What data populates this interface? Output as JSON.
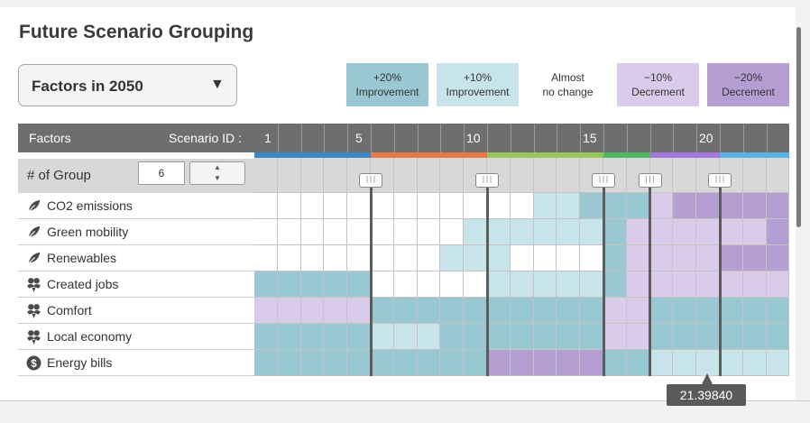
{
  "title": "Future Scenario Grouping",
  "dropdown": {
    "label": "Factors in 2050",
    "arrow": "▼"
  },
  "legend": [
    {
      "line1": "+20%",
      "line2": "Improvement",
      "color": "#99c8d2"
    },
    {
      "line1": "+10%",
      "line2": "Improvement",
      "color": "#c6e4ea"
    },
    {
      "line1": "Almost",
      "line2": "no change",
      "color": "#ffffff"
    },
    {
      "line1": "−10%",
      "line2": "Decrement",
      "color": "#dacbea"
    },
    {
      "line1": "−20%",
      "line2": "Decrement",
      "color": "#b59ed2"
    }
  ],
  "header": {
    "factors": "Factors",
    "scenario": "Scenario ID :",
    "ids": [
      "1",
      "5",
      "10",
      "15",
      "20"
    ]
  },
  "group": {
    "label": "# of Group",
    "value": "6",
    "up": "▲",
    "down": "▼"
  },
  "factors": [
    {
      "name": "CO2 emissions",
      "icon": "leaf-icon"
    },
    {
      "name": "Green mobility",
      "icon": "leaf-icon"
    },
    {
      "name": "Renewables",
      "icon": "leaf-icon"
    },
    {
      "name": "Created jobs",
      "icon": "people-icon"
    },
    {
      "name": "Comfort",
      "icon": "people-icon"
    },
    {
      "name": "Local economy",
      "icon": "people-icon"
    },
    {
      "name": "Energy bills",
      "icon": "dollar-icon"
    }
  ],
  "group_colors": [
    "#3a87c4",
    "#e8774c",
    "#99c65b",
    "#4fb867",
    "#a777e0",
    "#5ab4e3"
  ],
  "group_sizes": [
    5,
    5,
    5,
    2,
    3,
    3
  ],
  "matrix": [
    [
      2,
      2,
      2,
      2,
      2,
      2,
      2,
      2,
      2,
      2,
      2,
      2,
      1,
      1,
      0,
      0,
      0,
      3,
      4,
      4,
      4,
      4,
      4
    ],
    [
      2,
      2,
      2,
      2,
      2,
      2,
      2,
      2,
      2,
      1,
      1,
      1,
      1,
      1,
      1,
      0,
      3,
      3,
      3,
      3,
      3,
      3,
      4
    ],
    [
      2,
      2,
      2,
      2,
      2,
      2,
      2,
      2,
      1,
      1,
      1,
      2,
      2,
      2,
      2,
      0,
      3,
      3,
      3,
      3,
      4,
      4,
      4
    ],
    [
      0,
      0,
      0,
      0,
      0,
      2,
      2,
      2,
      2,
      2,
      1,
      1,
      1,
      1,
      1,
      0,
      3,
      3,
      3,
      3,
      3,
      3,
      3
    ],
    [
      3,
      3,
      3,
      3,
      3,
      0,
      0,
      0,
      0,
      0,
      0,
      0,
      0,
      0,
      0,
      3,
      3,
      0,
      0,
      0,
      0,
      0,
      0
    ],
    [
      0,
      0,
      0,
      0,
      0,
      1,
      1,
      1,
      0,
      0,
      0,
      0,
      0,
      0,
      0,
      3,
      3,
      0,
      0,
      0,
      0,
      0,
      0
    ],
    [
      0,
      0,
      0,
      0,
      0,
      0,
      0,
      0,
      0,
      0,
      4,
      4,
      4,
      4,
      4,
      0,
      0,
      1,
      1,
      1,
      1,
      1,
      1
    ]
  ],
  "handle_glyph": "∣∣∣",
  "tooltip": "21.39840"
}
